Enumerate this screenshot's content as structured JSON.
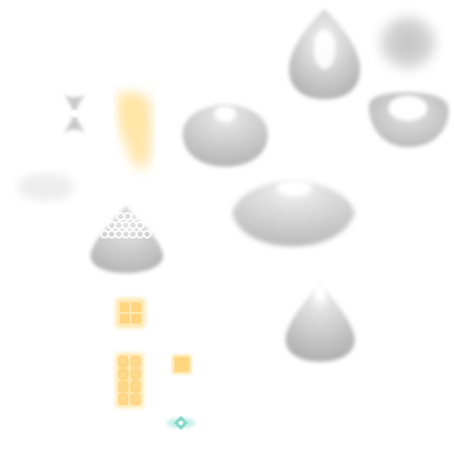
{
  "sheet": {
    "background_color": "#ffffff",
    "sprites": [
      {
        "id": "droplet-shape",
        "kind": "teardrop",
        "tint": "#bfbfbf"
      },
      {
        "id": "soft-glow-orb",
        "kind": "radial-glow",
        "tint": "#c9c9c9"
      },
      {
        "id": "bowtie-sparkle",
        "kind": "sparkle",
        "tint": "#d0d0d0"
      },
      {
        "id": "yellow-light-streak",
        "kind": "streak",
        "tint": "#ffd37a"
      },
      {
        "id": "dome-shape",
        "kind": "dome",
        "tint": "#c8c8c8"
      },
      {
        "id": "crescent-shape",
        "kind": "crescent",
        "tint": "#c6c6c6"
      },
      {
        "id": "faint-cloud",
        "kind": "cloud",
        "tint": "#eeeeee"
      },
      {
        "id": "flat-dome-shape",
        "kind": "dome",
        "tint": "#cfcfcf"
      },
      {
        "id": "honeycomb-cone",
        "kind": "cone",
        "tint": "#bdbdbd"
      },
      {
        "id": "cone-shape",
        "kind": "cone",
        "tint": "#bcbcbc"
      },
      {
        "id": "yellow-2x2-blocks",
        "kind": "blocks",
        "tint": "#ffd27a"
      },
      {
        "id": "yellow-2x4-blocks",
        "kind": "blocks",
        "tint": "#ffd27a"
      },
      {
        "id": "yellow-square",
        "kind": "block",
        "tint": "#ffd27a"
      },
      {
        "id": "teal-diamond-sparkle",
        "kind": "sparkle",
        "tint": "#7fd6c8"
      }
    ]
  }
}
